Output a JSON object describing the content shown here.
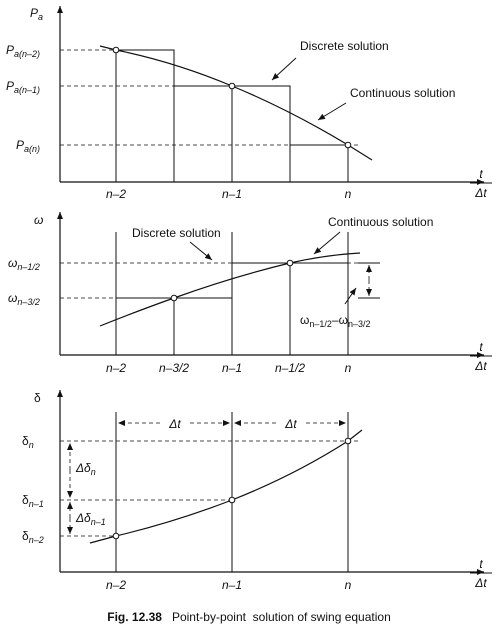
{
  "panels": [
    {
      "y_axis_label": {
        "main": "P",
        "sub": "a"
      },
      "y_labels": [
        {
          "main": "P",
          "sub": "a(n–2)"
        },
        {
          "main": "P",
          "sub": "a(n–1)"
        },
        {
          "main": "P",
          "sub": "a(n)"
        }
      ],
      "x_labels": [
        "n–2",
        "n–1",
        "n"
      ],
      "x_axis_label": {
        "num": "t",
        "den": "Δt"
      },
      "annotations": [
        "Discrete solution",
        "Continuous solution"
      ]
    },
    {
      "y_axis_label": "ω",
      "y_labels": [
        {
          "main": "ω",
          "sub": "n–1/2"
        },
        {
          "main": "ω",
          "sub": "n–3/2"
        }
      ],
      "x_labels": [
        "n–2",
        "n–3/2",
        "n–1",
        "n–1/2",
        "n"
      ],
      "x_axis_label": {
        "num": "t",
        "den": "Δt"
      },
      "annotations": [
        "Discrete solution",
        "Continuous solution"
      ],
      "difference_label": {
        "main": "ω",
        "sub": "n–1/2",
        "main2": "–ω",
        "sub2": "n–3/2"
      }
    },
    {
      "y_axis_label": "δ",
      "y_labels": [
        {
          "main": "δ",
          "sub": "n"
        },
        {
          "main": "δ",
          "sub": "n–1"
        },
        {
          "main": "δ",
          "sub": "n–2"
        }
      ],
      "x_labels": [
        "n–2",
        "n–1",
        "n"
      ],
      "x_axis_label": {
        "num": "t",
        "den": "Δt"
      },
      "interval_labels": [
        "Δt",
        "Δt"
      ],
      "increment_labels": [
        {
          "main": "Δδ",
          "sub": "n"
        },
        {
          "main": "Δδ",
          "sub": "n–1"
        }
      ]
    }
  ],
  "caption": {
    "number": "Fig. 12.38",
    "text": "Point-by-point  solution of swing equation"
  }
}
